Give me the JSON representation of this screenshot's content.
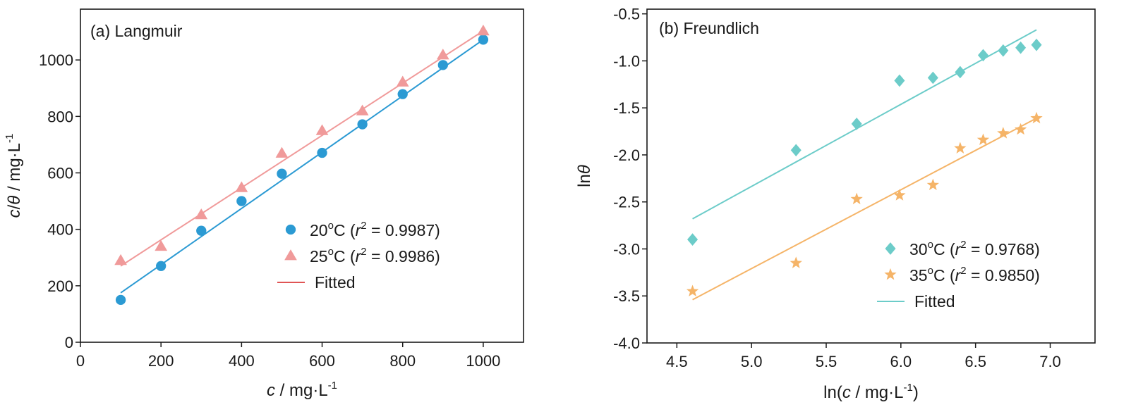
{
  "chart_data": [
    {
      "type": "scatter",
      "title": "(a) Langmuir",
      "xlabel": "c / mg·L⁻¹",
      "ylabel": "c/θ / mg·L⁻¹",
      "xlim": [
        0,
        1100
      ],
      "ylim": [
        0,
        1180
      ],
      "xticks": [
        0,
        200,
        400,
        600,
        800,
        1000
      ],
      "yticks": [
        0,
        200,
        400,
        600,
        800,
        1000
      ],
      "grid": false,
      "legend_position": "center-right",
      "series": [
        {
          "name": "20°C (r² = 0.9987)",
          "legend_parts": {
            "temp": "20",
            "r2": "0.9987"
          },
          "marker": "circle",
          "color": "#2b9ad3",
          "x": [
            100,
            200,
            300,
            400,
            500,
            600,
            700,
            800,
            900,
            1000
          ],
          "y": [
            150,
            270,
            395,
            500,
            597,
            671,
            772,
            879,
            982,
            1072
          ],
          "fit": {
            "x": [
              100,
              1000
            ],
            "y": [
              175,
              1072
            ]
          }
        },
        {
          "name": "25°C (r² = 0.9986)",
          "legend_parts": {
            "temp": "25",
            "r2": "0.9986"
          },
          "marker": "triangle",
          "color": "#f09a9a",
          "x": [
            100,
            200,
            300,
            400,
            500,
            600,
            700,
            800,
            900,
            1000
          ],
          "y": [
            290,
            340,
            452,
            548,
            670,
            750,
            820,
            922,
            1018,
            1103
          ],
          "fit": {
            "x": [
              100,
              1000
            ],
            "y": [
              270,
              1103
            ]
          }
        }
      ],
      "fitted_label": "Fitted",
      "fitted_legend_color": "#e05555"
    },
    {
      "type": "scatter",
      "title": "(b)  Freundlich",
      "xlabel": "ln(c / mg·L⁻¹)",
      "ylabel": "lnθ",
      "xlim": [
        4.3,
        7.3
      ],
      "ylim": [
        -4.0,
        -0.45
      ],
      "xticks": [
        "4.5",
        "5.0",
        "5.5",
        "6.0",
        "6.5",
        "7.0"
      ],
      "yticks": [
        "-4.0",
        "-3.5",
        "-3.0",
        "-2.5",
        "-2.0",
        "-1.5",
        "-1.0",
        "-0.5"
      ],
      "grid": false,
      "legend_position": "bottom-right",
      "series": [
        {
          "name": "30°C (r² = 0.9768)",
          "legend_parts": {
            "temp": "30",
            "r2": "0.9768"
          },
          "marker": "diamond",
          "color": "#6cccc9",
          "x": [
            4.605,
            5.298,
            5.704,
            5.991,
            6.215,
            6.397,
            6.551,
            6.685,
            6.802,
            6.908
          ],
          "y": [
            -2.9,
            -1.95,
            -1.67,
            -1.21,
            -1.18,
            -1.12,
            -0.94,
            -0.89,
            -0.86,
            -0.83
          ],
          "fit": {
            "x": [
              4.605,
              6.908
            ],
            "y": [
              -2.68,
              -0.67
            ]
          }
        },
        {
          "name": "35°C (r² = 0.9850)",
          "legend_parts": {
            "temp": "35",
            "r2": "0.9850"
          },
          "marker": "star",
          "color": "#f5b468",
          "x": [
            4.605,
            5.298,
            5.704,
            5.991,
            6.215,
            6.397,
            6.551,
            6.685,
            6.802,
            6.908
          ],
          "y": [
            -3.45,
            -3.15,
            -2.47,
            -2.43,
            -2.32,
            -1.93,
            -1.84,
            -1.77,
            -1.73,
            -1.61
          ],
          "fit": {
            "x": [
              4.605,
              6.908
            ],
            "y": [
              -3.54,
              -1.61
            ]
          }
        }
      ],
      "fitted_label": "Fitted",
      "fitted_legend_color": "#6cccc9"
    }
  ]
}
